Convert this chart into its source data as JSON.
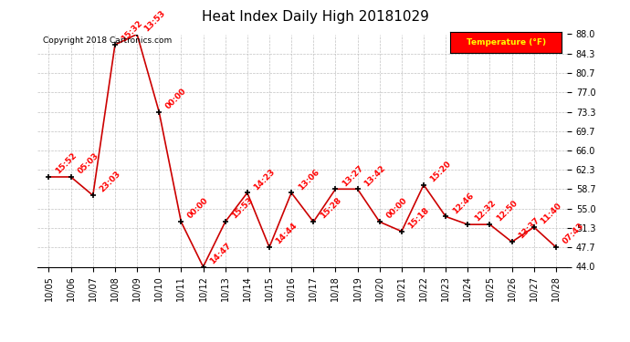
{
  "title": "Heat Index Daily High 20181029",
  "copyright": "Copyright 2018 Cartronics.com",
  "legend_label": "Temperature (°F)",
  "legend_bg": "#ff0000",
  "legend_text_color": "#ffff00",
  "x_labels": [
    "10/05",
    "10/06",
    "10/07",
    "10/08",
    "10/09",
    "10/10",
    "10/11",
    "10/12",
    "10/13",
    "10/14",
    "10/15",
    "10/16",
    "10/17",
    "10/18",
    "10/19",
    "10/20",
    "10/21",
    "10/22",
    "10/23",
    "10/24",
    "10/25",
    "10/26",
    "10/27",
    "10/28"
  ],
  "y_values": [
    61.0,
    61.0,
    57.5,
    86.0,
    88.0,
    73.3,
    52.5,
    44.0,
    52.5,
    58.0,
    47.7,
    58.0,
    52.5,
    58.7,
    58.7,
    52.5,
    50.7,
    59.5,
    53.5,
    52.0,
    52.0,
    48.7,
    51.5,
    47.7
  ],
  "point_labels": [
    "15:52",
    "05:03",
    "23:03",
    "15:32",
    "13:53",
    "00:00",
    "00:00",
    "14:47",
    "15:53",
    "14:23",
    "14:44",
    "13:06",
    "15:28",
    "13:27",
    "13:42",
    "00:00",
    "15:18",
    "15:20",
    "12:46",
    "12:32",
    "12:50",
    "13:37",
    "11:40",
    "07:43"
  ],
  "ylim": [
    44.0,
    88.0
  ],
  "yticks": [
    44.0,
    47.7,
    51.3,
    55.0,
    58.7,
    62.3,
    66.0,
    69.7,
    73.3,
    77.0,
    80.7,
    84.3,
    88.0
  ],
  "line_color": "#cc0000",
  "marker_color": "#000000",
  "bg_color": "#ffffff",
  "grid_color": "#bbbbbb",
  "label_color": "#ff0000",
  "title_fontsize": 11,
  "tick_fontsize": 7,
  "label_fontsize": 6.5,
  "copyright_fontsize": 6.5
}
